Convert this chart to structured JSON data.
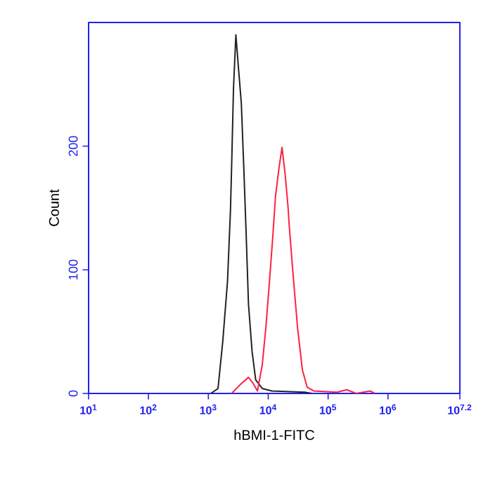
{
  "chart_data": {
    "type": "line",
    "xlabel": "hBMI-1-FITC",
    "ylabel": "Count",
    "log": "x",
    "marker": "none",
    "line_style": "solid",
    "xlim": [
      10,
      15848932
    ],
    "ylim": [
      0,
      300
    ],
    "xticks": [
      {
        "value": 10,
        "label": "10$^{1}$"
      },
      {
        "value": 100,
        "label": "10$^{2}$"
      },
      {
        "value": 1000,
        "label": "10$^{3}$"
      },
      {
        "value": 10000,
        "label": "10$^{4}$"
      },
      {
        "value": 100000,
        "label": "10$^{5}$"
      },
      {
        "value": 1000000,
        "label": "10$^{6}$"
      },
      {
        "value": 15848932,
        "label": "10$^{7.2}$"
      }
    ],
    "yticks": [
      0,
      100,
      200
    ],
    "series": [
      {
        "color": "#222222",
        "x": [
          1100,
          1450,
          1740,
          2090,
          2340,
          2450,
          2630,
          2880,
          3160,
          3550,
          3890,
          4270,
          4680,
          5370,
          6170,
          7940,
          11500,
          40700,
          53700
        ],
        "values": [
          0,
          4,
          42,
          91,
          148,
          185,
          247,
          290,
          265,
          235,
          185,
          130,
          72,
          34,
          11,
          4,
          2,
          1,
          0
        ]
      },
      {
        "color": "#ff2040",
        "x": [
          2450,
          3550,
          4680,
          5620,
          6610,
          7940,
          9120,
          10500,
          12000,
          13200,
          15100,
          17000,
          19100,
          21400,
          22400,
          25700,
          30900,
          37200,
          44700,
          57500,
          141000,
          204000,
          295000,
          501000,
          603000
        ],
        "values": [
          0,
          8,
          13,
          8,
          2,
          23,
          53,
          91,
          129,
          159,
          182,
          199,
          178,
          151,
          136,
          99,
          53,
          19,
          5,
          2,
          1,
          3,
          0,
          2,
          0
        ]
      }
    ]
  }
}
